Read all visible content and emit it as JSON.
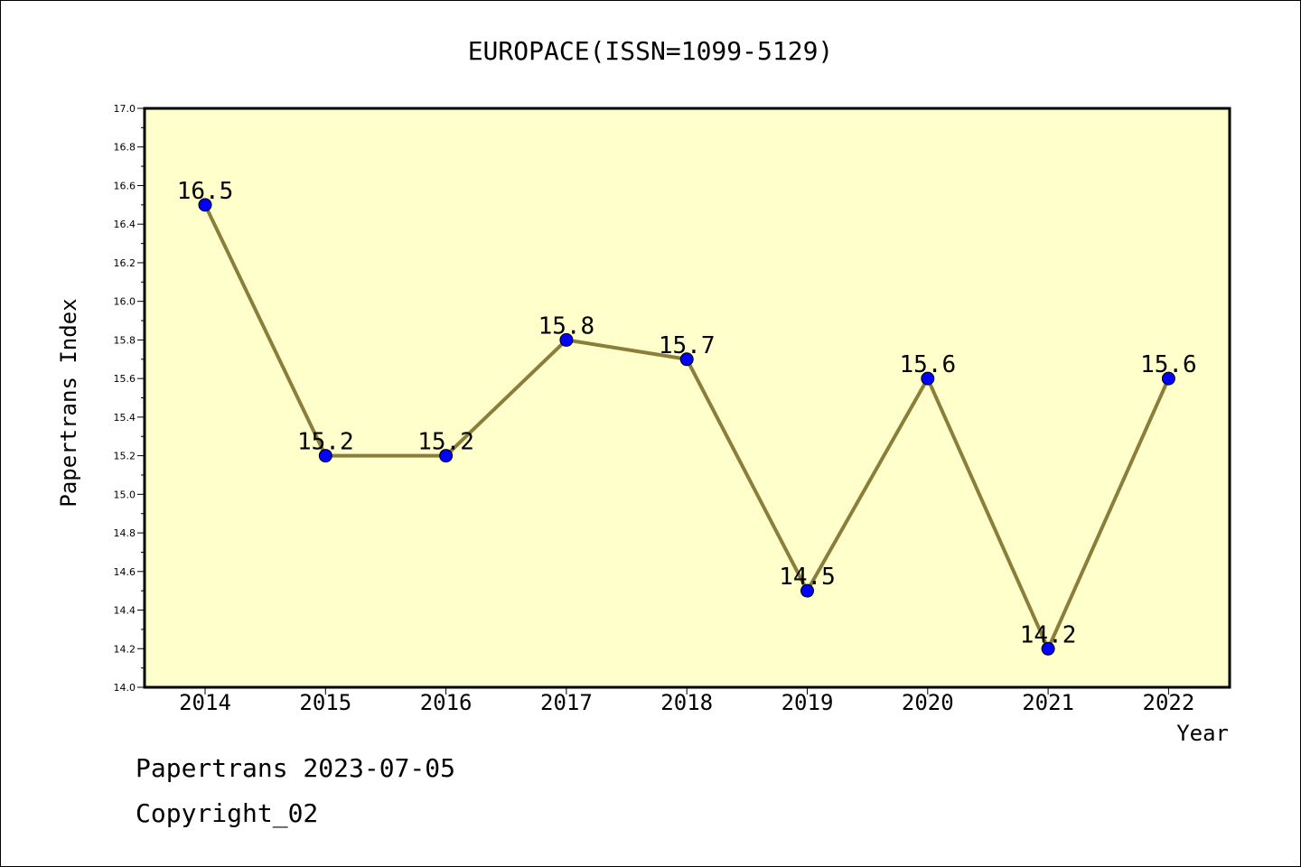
{
  "chart_data": {
    "type": "line",
    "title": "EUROPACE(ISSN=1099-5129)",
    "xlabel": "Year",
    "ylabel": "Papertrans Index",
    "categories": [
      "2014",
      "2015",
      "2016",
      "2017",
      "2018",
      "2019",
      "2020",
      "2021",
      "2022"
    ],
    "series": [
      {
        "values": [
          16.5,
          15.2,
          15.2,
          15.8,
          15.7,
          14.5,
          15.6,
          14.2,
          15.6
        ]
      }
    ],
    "data_labels": [
      "16.5",
      "15.2",
      "15.2",
      "15.8",
      "15.7",
      "14.5",
      "15.6",
      "14.2",
      "15.6"
    ],
    "ylim": [
      14.0,
      17.0
    ],
    "y_ticks": [
      "14.0",
      "14.2",
      "14.4",
      "14.6",
      "14.8",
      "15.0",
      "15.2",
      "15.4",
      "15.6",
      "15.8",
      "16.0",
      "16.2",
      "16.4",
      "16.6",
      "16.8",
      "17.0"
    ],
    "grid": false,
    "colors": {
      "plot_background": "#ffffcc",
      "line": "#8b7d3a",
      "marker": "#0000ff",
      "axis": "#000000"
    }
  },
  "footer": {
    "line1": "Papertrans 2023-07-05",
    "line2": "Copyright_02"
  }
}
